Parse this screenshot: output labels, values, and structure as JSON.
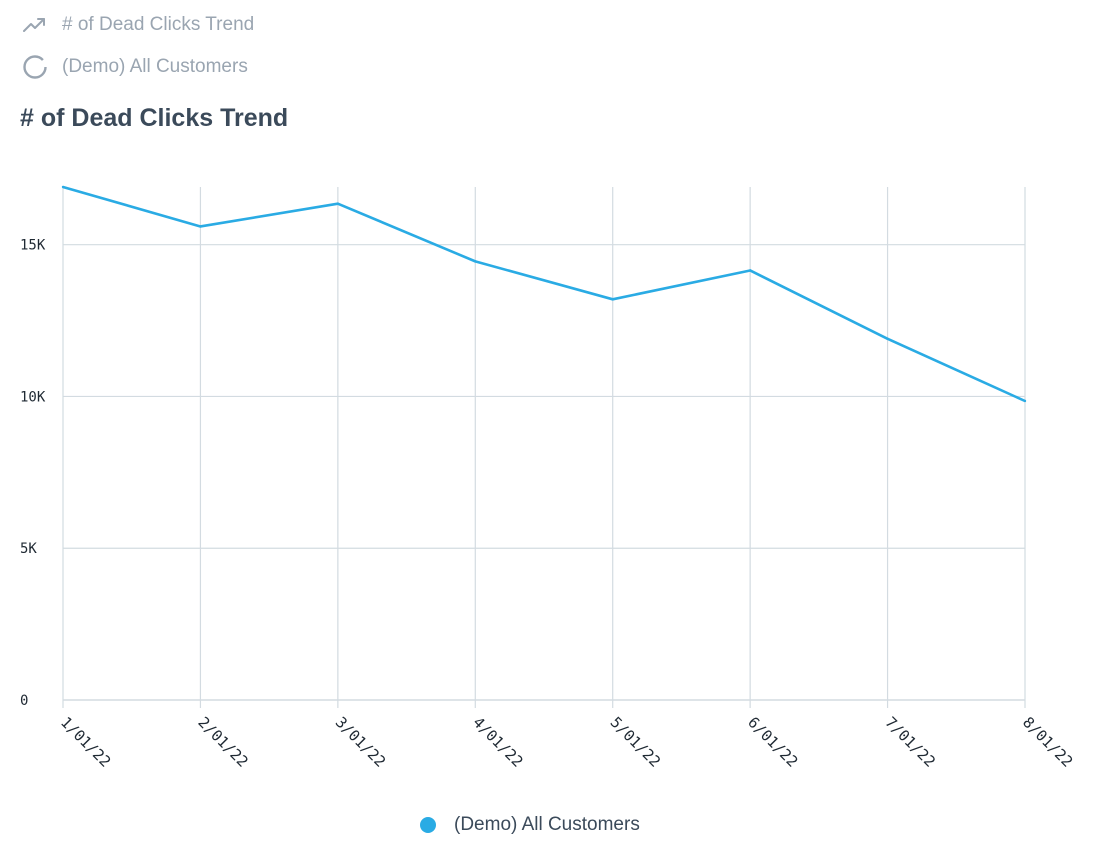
{
  "header": {
    "metric_name": "# of Dead Clicks Trend",
    "metric_icon": "trend-line-icon",
    "segment_name": "(Demo) All Customers",
    "segment_icon": "loading-ring-icon"
  },
  "page_title": "# of Dead Clicks Trend",
  "colors": {
    "series": "#2aabe4",
    "grid": "#d3dbe1",
    "meta_text": "#9aa5b1",
    "title_text": "#3b4a5a"
  },
  "chart_data": {
    "type": "line",
    "title": "# of Dead Clicks Trend",
    "xlabel": "",
    "ylabel": "",
    "categories": [
      "1/01/22",
      "2/01/22",
      "3/01/22",
      "4/01/22",
      "5/01/22",
      "6/01/22",
      "7/01/22",
      "8/01/22"
    ],
    "series": [
      {
        "name": "(Demo) All Customers",
        "values": [
          16900,
          15600,
          16350,
          14450,
          13200,
          14150,
          11900,
          9850
        ]
      }
    ],
    "y_ticks": [
      {
        "value": 0,
        "label": "0"
      },
      {
        "value": 5000,
        "label": "5K"
      },
      {
        "value": 10000,
        "label": "10K"
      },
      {
        "value": 15000,
        "label": "15K"
      }
    ],
    "ylim": [
      0,
      16900
    ],
    "grid": true,
    "legend_position": "bottom"
  },
  "legend": {
    "label": "(Demo) All Customers"
  }
}
